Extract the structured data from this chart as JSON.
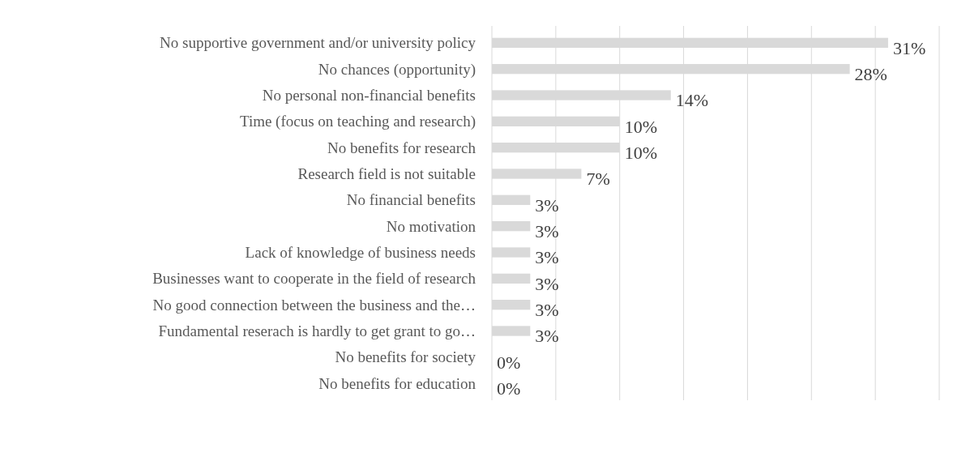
{
  "chart_data": {
    "type": "bar",
    "orientation": "horizontal",
    "categories": [
      "No supportive government and/or university policy",
      "No chances (opportunity)",
      "No personal non-financial benefits",
      "Time (focus on teaching and research)",
      "No benefits for research",
      "Research field is not suitable",
      "No financial benefits",
      "No motivation",
      "Lack of knowledge of business needs",
      "Businesses want to cooperate in the field of research",
      "No good connection between the business and the…",
      "Fundamental reserach is hardly to get grant to go…",
      "No benefits for society",
      "No benefits for education"
    ],
    "values": [
      31,
      28,
      14,
      10,
      10,
      7,
      3,
      3,
      3,
      3,
      3,
      3,
      0,
      0
    ],
    "value_labels": [
      "31%",
      "28%",
      "14%",
      "10%",
      "10%",
      "7%",
      "3%",
      "3%",
      "3%",
      "3%",
      "3%",
      "3%",
      "0%",
      "0%"
    ],
    "color": "#d9d9d9",
    "xlim": [
      0,
      35
    ],
    "xticks": [
      {
        "value": 0,
        "label": null
      },
      {
        "value": 5,
        "label": null
      },
      {
        "value": 10,
        "label": null
      },
      {
        "value": 15,
        "label": null
      },
      {
        "value": 20,
        "label": null
      },
      {
        "value": 25,
        "label": null
      },
      {
        "value": 30,
        "label": null
      },
      {
        "value": 35,
        "label": null
      }
    ],
    "grid": "x",
    "tick_labels": "y"
  }
}
